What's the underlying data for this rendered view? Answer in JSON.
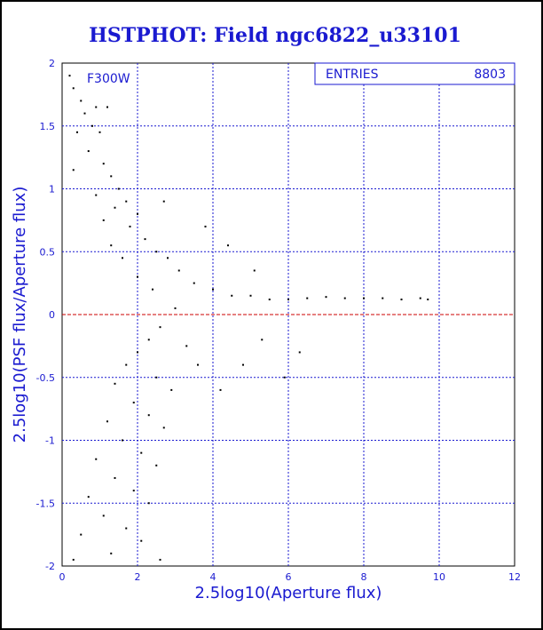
{
  "chart_data": {
    "type": "scatter",
    "title": "HSTPHOT: Field ngc6822_u33101",
    "xlabel": "2.5log10(Aperture flux)",
    "ylabel": "2.5log10(PSF flux/Aperture flux)",
    "xlim": [
      0,
      12
    ],
    "ylim": [
      -2,
      2
    ],
    "xticks": [
      "0",
      "2",
      "4",
      "6",
      "8",
      "10",
      "12"
    ],
    "yticks": [
      "-2",
      "-1.5",
      "-1",
      "-0.5",
      "0",
      "0.5",
      "1",
      "1.5",
      "2"
    ],
    "grid": true,
    "reference_line_y": 0,
    "filter_label": "F300W",
    "stats": {
      "label": "ENTRIES",
      "value": "8803"
    },
    "colors": {
      "text": "#1a1ad0",
      "grid": "#1a1ad0",
      "points": "#000000",
      "reference": "#cc0000"
    },
    "points": [
      [
        0.2,
        1.9
      ],
      [
        0.3,
        1.8
      ],
      [
        0.5,
        1.7
      ],
      [
        0.6,
        1.6
      ],
      [
        0.9,
        1.65
      ],
      [
        1.2,
        1.65
      ],
      [
        0.8,
        1.5
      ],
      [
        1.0,
        1.45
      ],
      [
        0.4,
        1.45
      ],
      [
        0.7,
        1.3
      ],
      [
        1.1,
        1.2
      ],
      [
        0.3,
        1.15
      ],
      [
        1.3,
        1.1
      ],
      [
        1.5,
        1.0
      ],
      [
        0.9,
        0.95
      ],
      [
        1.7,
        0.9
      ],
      [
        1.4,
        0.85
      ],
      [
        2.0,
        0.8
      ],
      [
        1.1,
        0.75
      ],
      [
        1.8,
        0.7
      ],
      [
        2.2,
        0.6
      ],
      [
        1.3,
        0.55
      ],
      [
        2.5,
        0.5
      ],
      [
        1.6,
        0.45
      ],
      [
        2.8,
        0.45
      ],
      [
        3.1,
        0.35
      ],
      [
        2.0,
        0.3
      ],
      [
        3.5,
        0.25
      ],
      [
        2.4,
        0.2
      ],
      [
        4.0,
        0.2
      ],
      [
        4.5,
        0.15
      ],
      [
        5.0,
        0.15
      ],
      [
        5.5,
        0.12
      ],
      [
        6.0,
        0.12
      ],
      [
        6.5,
        0.13
      ],
      [
        7.0,
        0.14
      ],
      [
        7.5,
        0.13
      ],
      [
        8.0,
        0.13
      ],
      [
        8.5,
        0.13
      ],
      [
        9.0,
        0.12
      ],
      [
        9.5,
        0.13
      ],
      [
        9.7,
        0.12
      ],
      [
        3.0,
        0.05
      ],
      [
        2.6,
        -0.1
      ],
      [
        2.3,
        -0.2
      ],
      [
        3.3,
        -0.25
      ],
      [
        2.0,
        -0.3
      ],
      [
        1.7,
        -0.4
      ],
      [
        3.6,
        -0.4
      ],
      [
        2.5,
        -0.5
      ],
      [
        1.4,
        -0.55
      ],
      [
        2.9,
        -0.6
      ],
      [
        4.2,
        -0.6
      ],
      [
        1.9,
        -0.7
      ],
      [
        2.3,
        -0.8
      ],
      [
        1.2,
        -0.85
      ],
      [
        2.7,
        -0.9
      ],
      [
        1.6,
        -1.0
      ],
      [
        2.1,
        -1.1
      ],
      [
        0.9,
        -1.15
      ],
      [
        2.5,
        -1.2
      ],
      [
        1.4,
        -1.3
      ],
      [
        1.9,
        -1.4
      ],
      [
        0.7,
        -1.45
      ],
      [
        2.3,
        -1.5
      ],
      [
        1.1,
        -1.6
      ],
      [
        1.7,
        -1.7
      ],
      [
        0.5,
        -1.75
      ],
      [
        2.1,
        -1.8
      ],
      [
        1.3,
        -1.9
      ],
      [
        0.3,
        -1.95
      ],
      [
        2.6,
        -1.95
      ],
      [
        5.9,
        -0.5
      ],
      [
        6.3,
        -0.3
      ],
      [
        4.8,
        -0.4
      ],
      [
        5.3,
        -0.2
      ],
      [
        4.4,
        0.55
      ],
      [
        5.1,
        0.35
      ],
      [
        3.8,
        0.7
      ],
      [
        2.7,
        0.9
      ]
    ]
  }
}
